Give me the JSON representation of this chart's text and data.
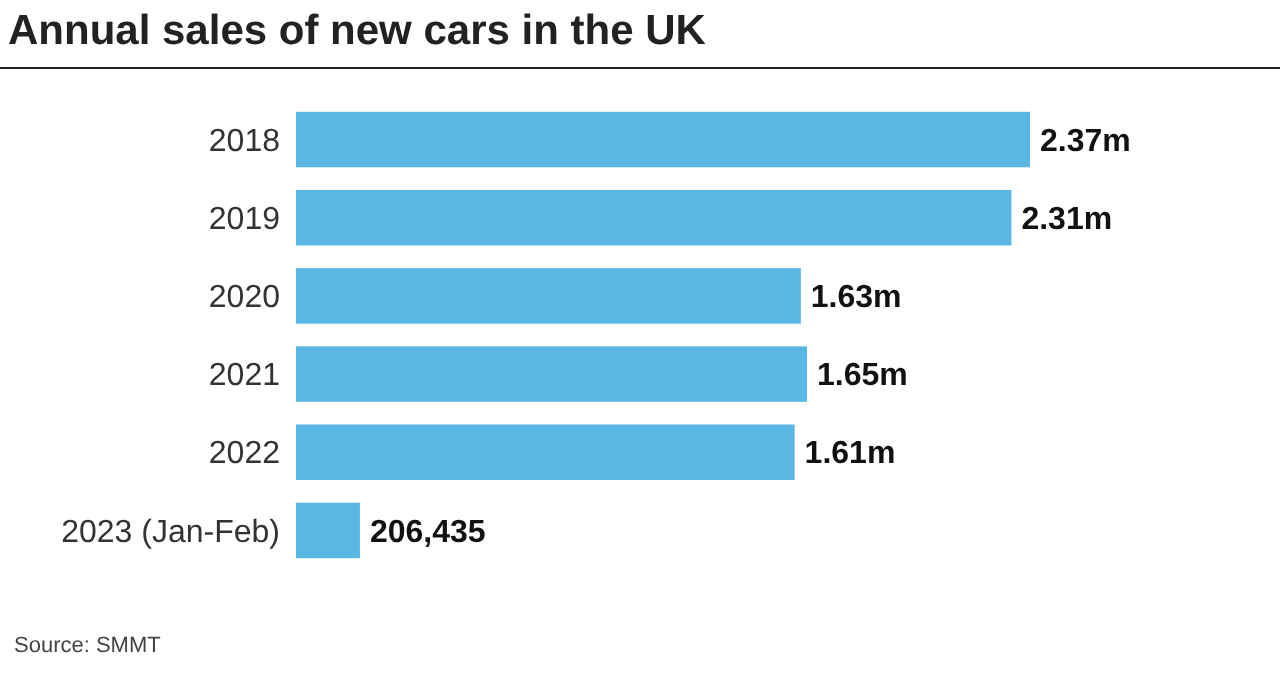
{
  "chart_data": {
    "type": "bar",
    "orientation": "horizontal",
    "title": "Annual sales of new cars in the UK",
    "categories": [
      "2018",
      "2019",
      "2020",
      "2021",
      "2022",
      "2023 (Jan-Feb)"
    ],
    "values": [
      2370000,
      2310000,
      1630000,
      1650000,
      1610000,
      206435
    ],
    "value_labels": [
      "2.37m",
      "2.31m",
      "1.63m",
      "1.65m",
      "1.61m",
      "206,435"
    ],
    "color": "#5ab6e2",
    "annotations": [
      "Source: SMMT"
    ]
  }
}
